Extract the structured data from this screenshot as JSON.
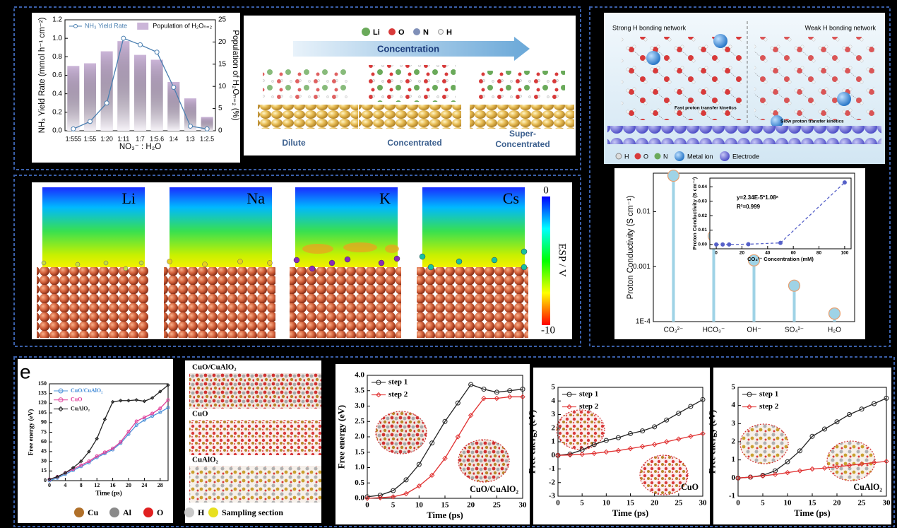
{
  "chart_data": [
    {
      "type": "combo",
      "categories": [
        "1:555",
        "1:55",
        "1:20",
        "1:11",
        "1:7",
        "1:5.6",
        "1:4",
        "1:3",
        "1:2.5"
      ],
      "xlabel": "NO₃⁻ : H₂O",
      "ylabel": "NH₃ Yield Rate (mmol h⁻¹ cm⁻²)",
      "y2label": "Population of H₂Oₙ₌₂ (%)",
      "ylim": [
        0,
        1.2
      ],
      "yticks": [
        {
          "value": 0,
          "label": "0.0"
        },
        {
          "value": 0.2,
          "label": "0.2"
        },
        {
          "value": 0.4,
          "label": "0.4"
        },
        {
          "value": 0.6,
          "label": "0.6"
        },
        {
          "value": 0.8,
          "label": "0.8"
        },
        {
          "value": 1.0,
          "label": "1.0"
        },
        {
          "value": 1.2,
          "label": "1.2"
        }
      ],
      "y2lim": [
        0,
        25
      ],
      "y2ticks": [
        0,
        5,
        10,
        15,
        20,
        25
      ],
      "legend": "top",
      "series": [
        {
          "name": "NH₃ Yield Rate",
          "type": "line",
          "color": "#4a7fb0",
          "values": [
            0.02,
            0.1,
            0.3,
            1.0,
            0.93,
            0.85,
            0.47,
            0.05,
            0.02
          ]
        },
        {
          "name": "Population of H₂Oₙ₌₂",
          "type": "bar",
          "axis": "y2",
          "color": "#cbb5d8",
          "values": [
            14.6,
            15.2,
            17.9,
            20.2,
            17.1,
            16,
            11,
            7.3,
            3.1
          ]
        }
      ]
    },
    {
      "type": "lollipop",
      "categories": [
        "CO₃²⁻",
        "HCO₃⁻",
        "OH⁻",
        "SO₄²⁻",
        "H₂O"
      ],
      "ylabel": "Proton Conductivity (S cm⁻¹)",
      "log_y": true,
      "ylim": [
        0.0001,
        0.05
      ],
      "yticks": [
        {
          "value": 0.0001,
          "label": "1E-4"
        },
        0.001,
        0.01
      ],
      "color": "#9fd3e6",
      "values": [
        0.045,
        0.0036,
        0.0013,
        0.00045,
        0.00014
      ]
    },
    {
      "type": "scatter",
      "xlabel": "CO₃²⁻ Concentration (mM)",
      "ylabel": "Proton Conductivity (S cm⁻¹)",
      "annotations": [
        "y=2.34E-5*1.08ˣ",
        "R²=0.999"
      ],
      "x": [
        0,
        5,
        10,
        25,
        50,
        100
      ],
      "xlim": [
        -5,
        105
      ],
      "xticks": [
        0,
        20,
        40,
        60,
        80,
        100
      ],
      "ylim": [
        -0.003,
        0.046
      ],
      "yticks": [
        {
          "value": 0,
          "label": "0.00"
        },
        {
          "value": 0.01,
          "label": "0.01"
        },
        {
          "value": 0.02,
          "label": "0.02"
        },
        {
          "value": 0.03,
          "label": "0.03"
        },
        {
          "value": 0.04,
          "label": "0.04"
        }
      ],
      "series": [
        {
          "color": "#5560c8",
          "linestyle": "dashed",
          "values": [
            0,
            0,
            0,
            0.0002,
            0.0011,
            0.043
          ]
        }
      ]
    },
    {
      "type": "line",
      "xlabel": "Time (ps)",
      "ylabel": "Free energy (eV)",
      "legend": "upper left",
      "x": [
        0,
        2,
        4,
        6,
        8,
        10,
        12,
        14,
        16,
        18,
        20,
        22,
        24,
        26,
        28,
        30
      ],
      "xlim": [
        0,
        30
      ],
      "xticks": [
        0,
        4,
        8,
        12,
        16,
        20,
        24,
        28
      ],
      "ylim": [
        0,
        150
      ],
      "yticks": [
        0,
        15,
        30,
        45,
        60,
        75,
        90,
        105,
        120,
        135,
        150
      ],
      "series": [
        {
          "name": "CuO/CuAlO₂",
          "color": "#4a90d9",
          "marker": "circle",
          "values": [
            0,
            4,
            10,
            16,
            22,
            28,
            36,
            42,
            48,
            58,
            72,
            86,
            94,
            100,
            106,
            113
          ]
        },
        {
          "name": "CuO",
          "color": "#e0409a",
          "marker": "circle",
          "values": [
            2,
            6,
            12,
            18,
            24,
            30,
            38,
            44,
            50,
            60,
            76,
            92,
            98,
            104,
            112,
            125
          ]
        },
        {
          "name": "CuAlO₂",
          "color": "#222222",
          "marker": "diamond",
          "values": [
            2,
            6,
            12,
            20,
            30,
            45,
            65,
            95,
            122,
            124,
            124,
            125,
            123,
            128,
            138,
            148
          ]
        }
      ]
    },
    {
      "type": "line",
      "xlabel": "Time (ps)",
      "ylabel": "Free energy (eV)",
      "legend": "upper left",
      "annotation": "CuO/CuAlO₂",
      "x": [
        0,
        2.5,
        5,
        7.5,
        10,
        12.5,
        15,
        17.5,
        20,
        22.5,
        25,
        27.5,
        30
      ],
      "xlim": [
        0,
        30
      ],
      "xticks": [
        0,
        5,
        10,
        15,
        20,
        25,
        30
      ],
      "ylim": [
        0,
        4.0
      ],
      "yticks": [
        {
          "value": 0,
          "label": "0.0"
        },
        {
          "value": 0.5,
          "label": "0.5"
        },
        {
          "value": 1.0,
          "label": "1.0"
        },
        {
          "value": 1.5,
          "label": "1.5"
        },
        {
          "value": 2.0,
          "label": "2.0"
        },
        {
          "value": 2.5,
          "label": "2.5"
        },
        {
          "value": 3.0,
          "label": "3.0"
        },
        {
          "value": 3.5,
          "label": "3.5"
        },
        {
          "value": 4.0,
          "label": "4.0"
        }
      ],
      "series": [
        {
          "name": "step 1",
          "color": "#222222",
          "marker": "circle",
          "values": [
            0.05,
            0.1,
            0.25,
            0.6,
            1.1,
            1.8,
            2.5,
            3.1,
            3.7,
            3.55,
            3.45,
            3.5,
            3.55
          ]
        },
        {
          "name": "step 2",
          "color": "#e03030",
          "marker": "diamond",
          "values": [
            0,
            0.02,
            0.05,
            0.15,
            0.4,
            0.75,
            1.3,
            2.0,
            2.7,
            3.25,
            3.25,
            3.3,
            3.3
          ]
        }
      ]
    },
    {
      "type": "line",
      "xlabel": "Time (ps)",
      "ylabel": "Free energy (eV)",
      "legend": "upper left",
      "annotation": "CuO",
      "x": [
        0,
        2.5,
        5,
        7.5,
        10,
        12.5,
        15,
        17.5,
        20,
        22.5,
        25,
        27.5,
        30
      ],
      "xlim": [
        0,
        30
      ],
      "xticks": [
        0,
        5,
        10,
        15,
        20,
        25,
        30
      ],
      "ylim": [
        -3,
        5
      ],
      "yticks": [
        -3,
        -2,
        -1,
        0,
        1,
        2,
        3,
        4,
        5
      ],
      "series": [
        {
          "name": "step 1",
          "color": "#222222",
          "marker": "circle",
          "values": [
            0,
            0.1,
            0.4,
            0.8,
            1.1,
            1.3,
            1.6,
            1.8,
            2.1,
            2.6,
            3.1,
            3.6,
            4.1
          ]
        },
        {
          "name": "step 2",
          "color": "#e03030",
          "marker": "diamond",
          "values": [
            0,
            0.03,
            0.08,
            0.15,
            0.25,
            0.35,
            0.5,
            0.65,
            0.8,
            1.0,
            1.2,
            1.4,
            1.6
          ]
        }
      ]
    },
    {
      "type": "line",
      "xlabel": "Time (ps)",
      "ylabel": "Free energy (eV)",
      "legend": "upper left",
      "annotation": "CuAlO₂",
      "x": [
        0,
        2.5,
        5,
        7.5,
        10,
        12.5,
        15,
        17.5,
        20,
        22.5,
        25,
        27.5,
        30
      ],
      "xlim": [
        0,
        30
      ],
      "xticks": [
        0,
        5,
        10,
        15,
        20,
        25,
        30
      ],
      "ylim": [
        -1,
        5
      ],
      "yticks": [
        -1,
        0,
        1,
        2,
        3,
        4,
        5
      ],
      "series": [
        {
          "name": "step 1",
          "color": "#222222",
          "marker": "circle",
          "values": [
            0,
            0.05,
            0.15,
            0.4,
            0.9,
            1.5,
            2.3,
            2.7,
            3.1,
            3.5,
            3.8,
            4.1,
            4.4
          ]
        },
        {
          "name": "step 2",
          "color": "#e03030",
          "marker": "diamond",
          "values": [
            0,
            0.05,
            0.12,
            0.2,
            0.3,
            0.4,
            0.5,
            0.55,
            0.62,
            0.7,
            0.78,
            0.85,
            0.92
          ]
        }
      ]
    }
  ],
  "concentration_panel": {
    "legend": [
      "Li",
      "O",
      "N",
      "H"
    ],
    "arrow": "Concentration",
    "labels": [
      "Dilute",
      "Concentrated"
    ],
    "super_label": [
      "Super-",
      "Concentrated"
    ]
  },
  "esp_panel": {
    "labels": [
      "Li",
      "Na",
      "K",
      "Cs"
    ],
    "colorbar": {
      "max": 0,
      "min": -10,
      "label": "ESP / V"
    }
  },
  "hbond_panel": {
    "titles": [
      "Strong H bonding network",
      "Weak H bonding network"
    ],
    "notes": [
      "Fast proton transfer kinetics",
      "Slow proton transfer kinetics"
    ],
    "legend": [
      "H",
      "O",
      "N",
      "Metal ion",
      "Electrode"
    ]
  },
  "structure_panel": {
    "labels": [
      "CuO/CuAlO₂",
      "CuO",
      "CuAlO₂"
    ],
    "legend": [
      "Cu",
      "Al",
      "O",
      "H",
      "Sampling section"
    ]
  },
  "panel_letters": [
    "e"
  ]
}
